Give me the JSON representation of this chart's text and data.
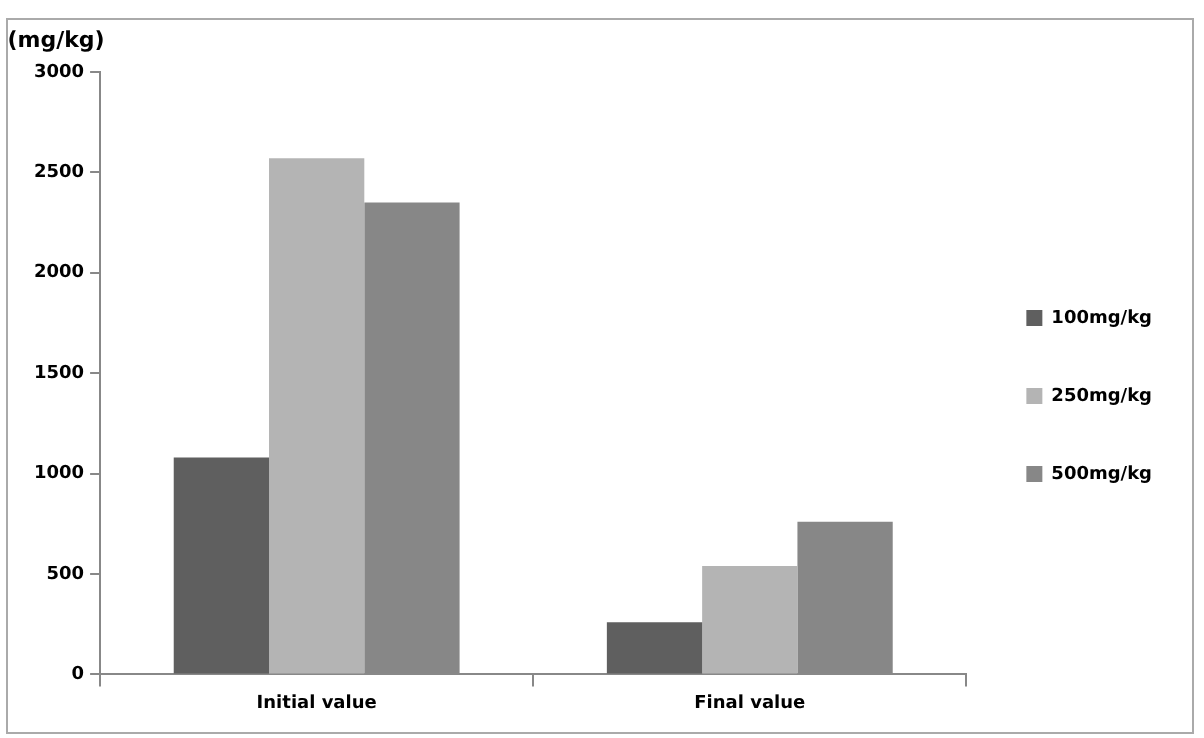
{
  "chart_data": {
    "type": "bar",
    "ylabel": "(mg/kg)",
    "categories": [
      "Initial value",
      "Final value"
    ],
    "series": [
      {
        "name": "100mg/kg",
        "color": "#5f5f5f",
        "values": [
          1080,
          260
        ]
      },
      {
        "name": "250mg/kg",
        "color": "#b4b4b4",
        "values": [
          2570,
          540
        ]
      },
      {
        "name": "500mg/kg",
        "color": "#878787",
        "values": [
          2350,
          760
        ]
      }
    ],
    "ylim": [
      0,
      3000
    ],
    "yticks": [
      0,
      500,
      1000,
      1500,
      2000,
      2500,
      3000
    ],
    "grid": false,
    "legend": "right"
  }
}
